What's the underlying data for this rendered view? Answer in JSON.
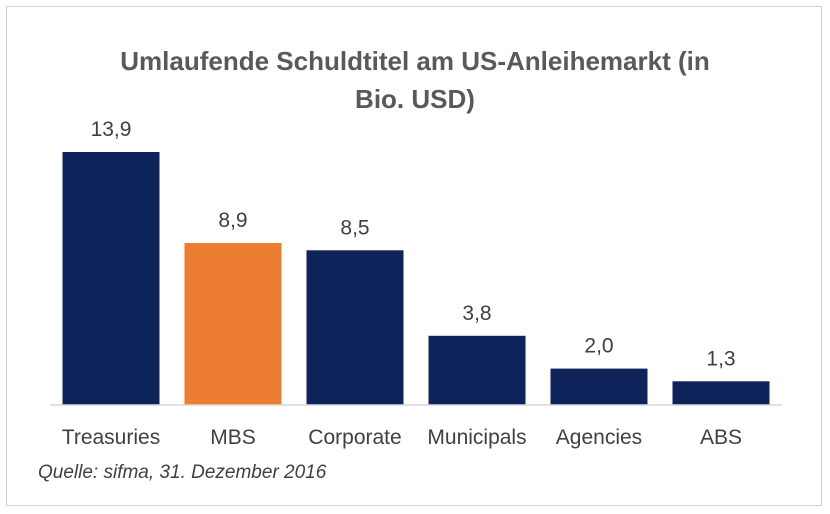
{
  "chart_data": {
    "type": "bar",
    "title_lines": [
      "Umlaufende Schuldtitel am US-Anleihemarkt (in",
      "Bio. USD)"
    ],
    "categories": [
      "Treasuries",
      "MBS",
      "Corporate",
      "Municipals",
      "Agencies",
      "ABS"
    ],
    "values": [
      13.9,
      8.9,
      8.5,
      3.8,
      2.0,
      1.3
    ],
    "value_labels": [
      "13,9",
      "8,9",
      "8,5",
      "3,8",
      "2,0",
      "1,3"
    ],
    "colors": [
      "#0d2359",
      "#ed7d31",
      "#0d2359",
      "#0d2359",
      "#0d2359",
      "#0d2359"
    ],
    "xlabel": "",
    "ylabel": "",
    "ylim": [
      0,
      14
    ],
    "grid": false,
    "legend": "none"
  },
  "source_note": "Quelle: sifma, 31. Dezember 2016"
}
